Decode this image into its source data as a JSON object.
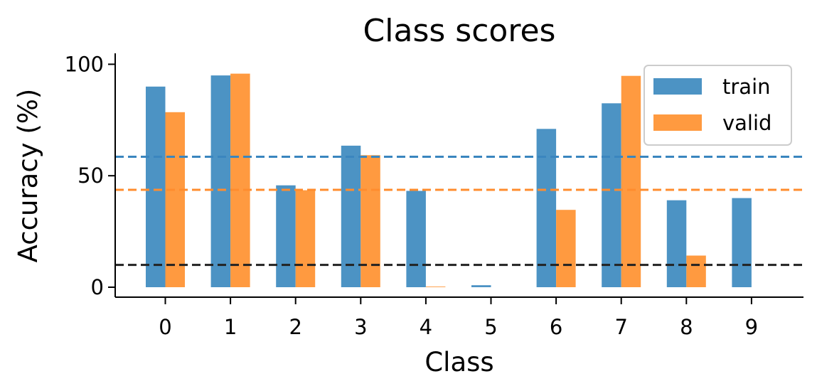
{
  "chart_data": {
    "type": "bar",
    "title": "Class scores",
    "xlabel": "Class",
    "ylabel": "Accuracy (%)",
    "categories": [
      "0",
      "1",
      "2",
      "3",
      "4",
      "5",
      "6",
      "7",
      "8",
      "9"
    ],
    "yticks": [
      "0",
      "50",
      "100"
    ],
    "ylim": [
      -4,
      105
    ],
    "series": [
      {
        "name": "train",
        "color": "#4c93c4",
        "values": [
          90,
          95,
          45.7,
          63.5,
          43.2,
          0.9,
          71,
          82.5,
          39,
          40
        ]
      },
      {
        "name": "valid",
        "color": "#ff9a40",
        "values": [
          78.5,
          95.8,
          43.5,
          59.2,
          0.3,
          0,
          34.7,
          94.8,
          14.2,
          0
        ]
      }
    ],
    "reference_lines": [
      {
        "value": 58.5,
        "color": "#3a86bf",
        "style": "dashed"
      },
      {
        "value": 43.7,
        "color": "#ff8c2e",
        "style": "dashed"
      },
      {
        "value": 10,
        "color": "#222222",
        "style": "dashed"
      }
    ],
    "legend_position": "top-right",
    "grid": false
  }
}
